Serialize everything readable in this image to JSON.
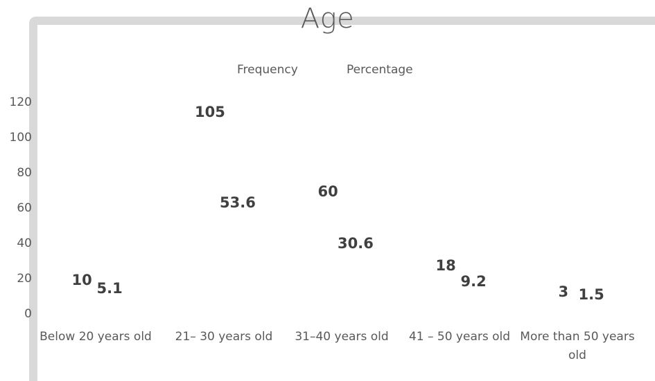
{
  "chart_data": {
    "type": "bar",
    "title": "Age",
    "xlabel": "",
    "ylabel": "",
    "ylim": [
      0,
      120
    ],
    "yticks": [
      "120",
      "100",
      "80",
      "60",
      "40",
      "20",
      "0"
    ],
    "categories": [
      "Below 20 years old",
      "21– 30 years old",
      "31–40 years old",
      "41 – 50 years old",
      "More than 50 years old"
    ],
    "series": [
      {
        "name": "Frequency",
        "values": [
          10,
          105,
          60,
          18,
          3
        ],
        "labels": [
          "10",
          "105",
          "60",
          "18",
          "3"
        ]
      },
      {
        "name": "Percentage",
        "values": [
          5.1,
          53.6,
          30.6,
          9.2,
          1.5
        ],
        "labels": [
          "5.1",
          "53.6",
          "30.6",
          "9.2",
          "1.5"
        ]
      }
    ],
    "legend_position": "top",
    "grid": false
  }
}
